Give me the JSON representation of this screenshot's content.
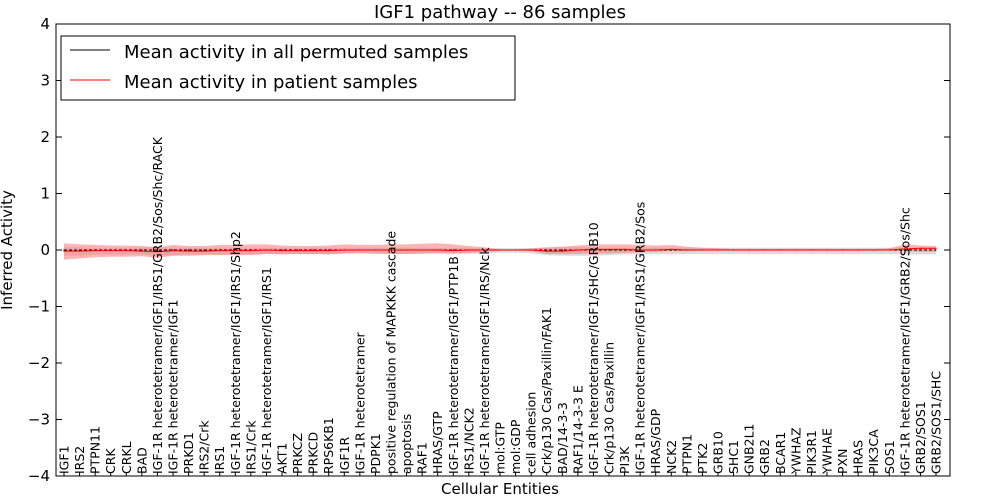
{
  "chart_data": {
    "type": "line",
    "title": "IGF1 pathway -- 86 samples",
    "xlabel": "Cellular Entities",
    "ylabel": "Inferred Activity",
    "ylim": [
      -4,
      4
    ],
    "yticks": [
      -4,
      -3,
      -2,
      -1,
      0,
      1,
      2,
      3,
      4
    ],
    "ytick_labels": [
      "−4",
      "−3",
      "−2",
      "−1",
      "0",
      "1",
      "2",
      "3",
      "4"
    ],
    "grid": false,
    "legend_position": "top-left",
    "categories": [
      "IGF1",
      "IRS2",
      "PTPN11",
      "CRK",
      "CRKL",
      "BAD",
      "IGF-1R heterotetramer/IGF1/IRS1/GRB2/Sos/Shc/RACK",
      "IGF-1R heterotetramer/IGF1",
      "PRKD1",
      "IRS2/Crk",
      "IRS1",
      "IGF-1R heterotetramer/IGF1/IRS1/Shp2",
      "IRS1/Crk",
      "IGF-1R heterotetramer/IGF1/IRS1",
      "AKT1",
      "PRKCZ",
      "PRKCD",
      "RPS6KB1",
      "IGF1R",
      "IGF-1R heterotetramer",
      "PDPK1",
      "positive regulation of MAPKKK cascade",
      "apoptosis",
      "RAF1",
      "HRAS/GTP",
      "IGF-1R heterotetramer/IGF1/PTP1B",
      "IRS1/NCK2",
      "IGF-1R heterotetramer/IGF1/IRS/Nck",
      "mol:GTP",
      "mol:GDP",
      "cell adhesion",
      "Crk/p130 Cas/Paxillin/FAK1",
      "BAD/14-3-3",
      "RAF1/14-3-3 E",
      "IGF-1R heterotetramer/IGF1/SHC/GRB10",
      "Crk/p130 Cas/Paxillin",
      "PI3K",
      "IGF-1R heterotetramer/IGF1/IRS1/GRB2/Sos",
      "HRAS/GDP",
      "NCK2",
      "PTPN1",
      "PTK2",
      "GRB10",
      "SHC1",
      "GNB2L1",
      "GRB2",
      "BCAR1",
      "YWHAZ",
      "PIK3R1",
      "YWHAE",
      "PXN",
      "HRAS",
      "PIK3CA",
      "SOS1",
      "IGF-1R heterotetramer/IGF1/GRB2/Sos/Shc",
      "GRB2/SOS1",
      "GRB2/SOS1/SHC"
    ],
    "series": [
      {
        "name": "Mean activity in all permuted samples",
        "color": "#000000",
        "values": [
          0.0,
          0.0,
          0.0,
          0.0,
          0.0,
          0.0,
          0.0,
          0.0,
          0.0,
          0.0,
          0.0,
          0.0,
          0.0,
          0.0,
          0.0,
          0.0,
          0.0,
          0.0,
          0.0,
          0.0,
          0.0,
          0.0,
          0.0,
          0.0,
          0.0,
          0.0,
          0.0,
          0.0,
          0.0,
          0.0,
          0.0,
          0.0,
          0.0,
          0.0,
          0.0,
          0.0,
          0.0,
          0.0,
          0.0,
          0.0,
          0.0,
          0.0,
          0.0,
          0.0,
          0.0,
          0.0,
          0.0,
          0.0,
          0.0,
          0.0,
          0.0,
          0.0,
          0.0,
          0.0,
          0.0,
          0.0,
          0.0
        ],
        "band_low": [
          -0.1,
          -0.1,
          -0.08,
          -0.08,
          -0.08,
          -0.08,
          -0.1,
          -0.09,
          -0.08,
          -0.08,
          -0.08,
          -0.08,
          -0.08,
          -0.07,
          -0.07,
          -0.07,
          -0.07,
          -0.07,
          -0.07,
          -0.07,
          -0.07,
          -0.07,
          -0.07,
          -0.07,
          -0.07,
          -0.07,
          -0.07,
          -0.06,
          -0.05,
          -0.05,
          -0.06,
          -0.09,
          -0.1,
          -0.1,
          -0.1,
          -0.09,
          -0.08,
          -0.08,
          -0.07,
          -0.07,
          -0.07,
          -0.07,
          -0.07,
          -0.07,
          -0.07,
          -0.07,
          -0.07,
          -0.07,
          -0.07,
          -0.07,
          -0.07,
          -0.07,
          -0.07,
          -0.07,
          -0.08,
          -0.08,
          -0.08
        ],
        "band_high": [
          0.05,
          0.05,
          0.04,
          0.04,
          0.04,
          0.04,
          0.05,
          0.04,
          0.04,
          0.04,
          0.04,
          0.04,
          0.04,
          0.04,
          0.04,
          0.04,
          0.04,
          0.04,
          0.04,
          0.04,
          0.04,
          0.04,
          0.04,
          0.04,
          0.04,
          0.04,
          0.04,
          0.03,
          0.03,
          0.03,
          0.03,
          0.04,
          0.05,
          0.05,
          0.05,
          0.04,
          0.04,
          0.04,
          0.04,
          0.04,
          0.04,
          0.04,
          0.04,
          0.04,
          0.04,
          0.04,
          0.04,
          0.04,
          0.04,
          0.04,
          0.04,
          0.04,
          0.04,
          0.04,
          0.04,
          0.04,
          0.04
        ]
      },
      {
        "name": "Mean activity in patient samples",
        "color": "#ff0000",
        "values": [
          -0.02,
          -0.02,
          -0.01,
          -0.01,
          -0.01,
          -0.02,
          -0.03,
          -0.01,
          -0.02,
          -0.02,
          -0.01,
          -0.01,
          -0.01,
          0.0,
          -0.01,
          -0.01,
          -0.01,
          -0.01,
          0.0,
          0.0,
          0.0,
          0.0,
          0.0,
          0.0,
          0.0,
          -0.01,
          0.0,
          0.0,
          0.0,
          0.0,
          0.0,
          -0.02,
          -0.02,
          0.0,
          0.01,
          0.01,
          0.01,
          0.0,
          0.0,
          0.01,
          0.0,
          0.0,
          0.0,
          0.0,
          0.0,
          0.0,
          0.0,
          0.0,
          0.0,
          0.0,
          0.0,
          0.0,
          0.0,
          0.0,
          0.02,
          0.03,
          0.03
        ],
        "band_low": [
          -0.17,
          -0.15,
          -0.13,
          -0.12,
          -0.12,
          -0.11,
          -0.14,
          -0.1,
          -0.1,
          -0.09,
          -0.09,
          -0.09,
          -0.09,
          -0.07,
          -0.08,
          -0.07,
          -0.07,
          -0.08,
          -0.06,
          -0.05,
          -0.06,
          -0.07,
          -0.07,
          -0.06,
          -0.05,
          -0.06,
          -0.05,
          -0.03,
          -0.01,
          -0.01,
          -0.02,
          -0.07,
          -0.07,
          -0.07,
          -0.06,
          -0.06,
          -0.05,
          -0.04,
          -0.03,
          -0.02,
          -0.02,
          -0.01,
          -0.01,
          -0.01,
          -0.01,
          -0.01,
          -0.01,
          -0.01,
          -0.01,
          -0.01,
          -0.01,
          -0.01,
          -0.01,
          -0.01,
          -0.02,
          -0.03,
          -0.03
        ],
        "band_high": [
          0.12,
          0.1,
          0.09,
          0.08,
          0.08,
          0.07,
          0.05,
          0.09,
          0.07,
          0.07,
          0.09,
          0.09,
          0.1,
          0.1,
          0.08,
          0.07,
          0.07,
          0.08,
          0.1,
          0.09,
          0.09,
          0.1,
          0.1,
          0.11,
          0.12,
          0.1,
          0.07,
          0.05,
          0.01,
          0.01,
          0.03,
          0.05,
          0.06,
          0.08,
          0.1,
          0.1,
          0.1,
          0.09,
          0.08,
          0.09,
          0.06,
          0.04,
          0.03,
          0.02,
          0.02,
          0.02,
          0.02,
          0.02,
          0.02,
          0.02,
          0.02,
          0.02,
          0.02,
          0.03,
          0.1,
          0.08,
          0.07
        ]
      }
    ]
  }
}
